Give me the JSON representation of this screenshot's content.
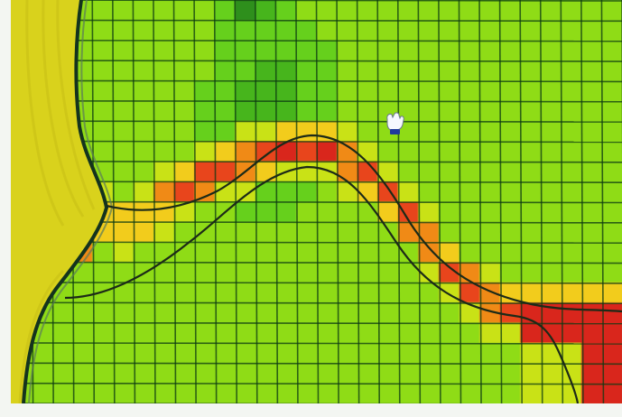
{
  "scene": {
    "kind": "tile-heatmap-viewport",
    "colors": {
      "frame": "#f3f6f2",
      "grid_line": "#0c3a12",
      "bank_sand": "#d9d21c",
      "bank_outline": "#14331e",
      "heat_ramp": [
        "#2f8f1a",
        "#46b51f",
        "#66d01f",
        "#8fdc18",
        "#c9e214",
        "#f2cc1a",
        "#f08a16",
        "#e8451a",
        "#d9281b"
      ]
    },
    "icons": {
      "cursor": "hand-cursor-icon"
    }
  }
}
